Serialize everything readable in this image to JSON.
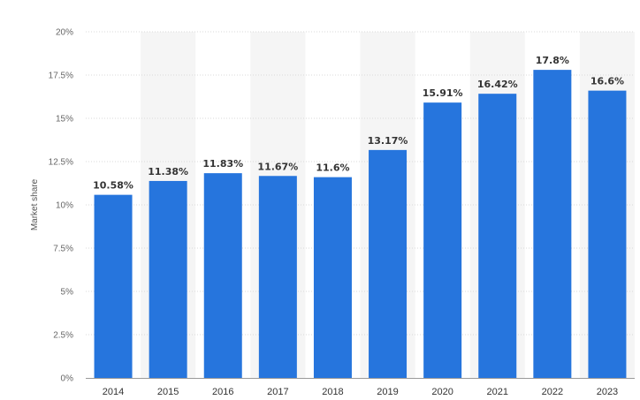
{
  "chart_data": {
    "type": "bar",
    "categories": [
      "2014",
      "2015",
      "2016",
      "2017",
      "2018",
      "2019",
      "2020",
      "2021",
      "2022",
      "2023"
    ],
    "values": [
      10.58,
      11.38,
      11.83,
      11.67,
      11.6,
      13.17,
      15.91,
      16.42,
      17.8,
      16.6
    ],
    "value_labels": [
      "10.58%",
      "11.38%",
      "11.83%",
      "11.67%",
      "11.6%",
      "13.17%",
      "15.91%",
      "16.42%",
      "17.8%",
      "16.6%"
    ],
    "ylabel": "Market share",
    "ylim": [
      0,
      20
    ],
    "yticks": [
      0,
      2.5,
      5,
      7.5,
      10,
      12.5,
      15,
      17.5,
      20
    ],
    "ytick_labels": [
      "0%",
      "2.5%",
      "5%",
      "7.5%",
      "10%",
      "12.5%",
      "15%",
      "17.5%",
      "20%"
    ],
    "grid": true,
    "colors": {
      "bar": "#2675dd",
      "grid": "#d9d9d9",
      "band": "#f5f5f5"
    }
  }
}
